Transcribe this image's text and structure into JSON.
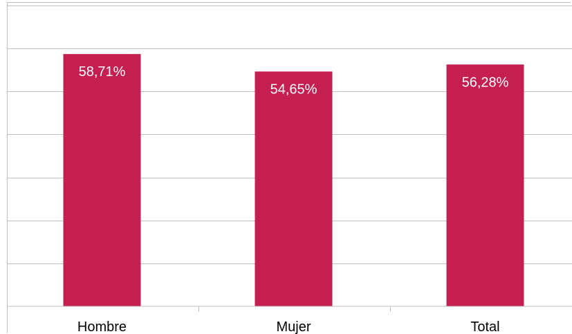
{
  "chart_data": {
    "type": "bar",
    "categories": [
      "Hombre",
      "Mujer",
      "Total"
    ],
    "values": [
      58.71,
      54.65,
      56.28
    ],
    "data_labels": [
      "58,71%",
      "54,65%",
      "56,28%"
    ],
    "ylim": [
      0,
      70
    ],
    "grid": true,
    "bar_color": "#c51f51",
    "gridline_color": "#bfbfbf"
  }
}
